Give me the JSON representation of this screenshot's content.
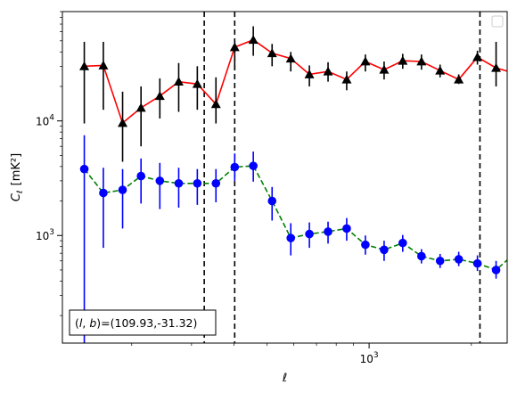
{
  "chart_data": {
    "type": "scatter",
    "xlabel": "ℓ",
    "ylabel_main": "C",
    "ylabel_sub": "ℓ",
    "ylabel_unit": "[mK²]",
    "x_scale": "log",
    "y_scale": "log",
    "xlim": [
      125,
      2550
    ],
    "ylim": [
      115,
      90000
    ],
    "x_tick_labels": [
      {
        "value": 1000,
        "base": "10",
        "exp": "3"
      }
    ],
    "y_tick_labels": [
      {
        "value": 1000,
        "base": "10",
        "exp": "3"
      },
      {
        "value": 10000,
        "base": "10",
        "exp": "4"
      }
    ],
    "vlines": [
      327,
      402,
      2120
    ],
    "legend": {
      "placement": "top-right",
      "entries": []
    },
    "annotation": "(l, b)=(109.93,-31.32)",
    "series": [
      {
        "marker": "triangle",
        "color": "#000000",
        "line_color": "#ff0000",
        "line_style": "solid",
        "x": [
          145,
          165,
          188,
          213,
          242,
          275,
          312,
          354,
          402,
          456,
          518,
          588,
          667,
          757,
          859,
          975,
          1107,
          1256,
          1426,
          1618,
          1836,
          2084,
          2365,
          2685
        ],
        "y": [
          30000,
          30500,
          9600,
          13000,
          16500,
          22000,
          21000,
          14000,
          44000,
          51000,
          39000,
          35000,
          25500,
          27000,
          23000,
          33000,
          28000,
          33500,
          33000,
          27500,
          23000,
          36000,
          29000,
          26000
        ],
        "y_low": [
          9500,
          12500,
          4400,
          6000,
          10500,
          12000,
          12500,
          9500,
          28000,
          37000,
          30000,
          27000,
          20000,
          22000,
          18500,
          27000,
          23000,
          28500,
          28000,
          24000,
          21000,
          31000,
          20000,
          21500
        ],
        "y_high": [
          49000,
          49000,
          18000,
          20000,
          23500,
          32000,
          30000,
          24000,
          50000,
          67000,
          47000,
          40000,
          30500,
          32500,
          27000,
          38000,
          33000,
          38500,
          38000,
          31000,
          25500,
          41000,
          49000,
          31000
        ]
      },
      {
        "marker": "circle",
        "color": "#0000ff",
        "line_color": "#008000",
        "line_style": "dashed",
        "x": [
          145,
          165,
          188,
          213,
          242,
          275,
          312,
          354,
          402,
          456,
          518,
          588,
          667,
          757,
          859,
          975,
          1107,
          1256,
          1426,
          1618,
          1836,
          2084,
          2365,
          2685
        ],
        "y": [
          3800,
          2350,
          2500,
          3300,
          3000,
          2850,
          2850,
          2850,
          3950,
          4050,
          2000,
          950,
          1030,
          1080,
          1150,
          830,
          750,
          860,
          660,
          600,
          620,
          570,
          500,
          700
        ],
        "y_low": [
          100,
          780,
          1150,
          1900,
          1700,
          1750,
          1850,
          1950,
          3000,
          2950,
          1350,
          670,
          780,
          850,
          900,
          680,
          600,
          720,
          570,
          520,
          540,
          490,
          420,
          580
        ],
        "y_high": [
          7500,
          3900,
          3800,
          4700,
          4300,
          3900,
          3800,
          3800,
          5200,
          5400,
          2650,
          1280,
          1300,
          1320,
          1420,
          1000,
          900,
          1010,
          760,
          690,
          720,
          670,
          600,
          830
        ]
      }
    ]
  }
}
